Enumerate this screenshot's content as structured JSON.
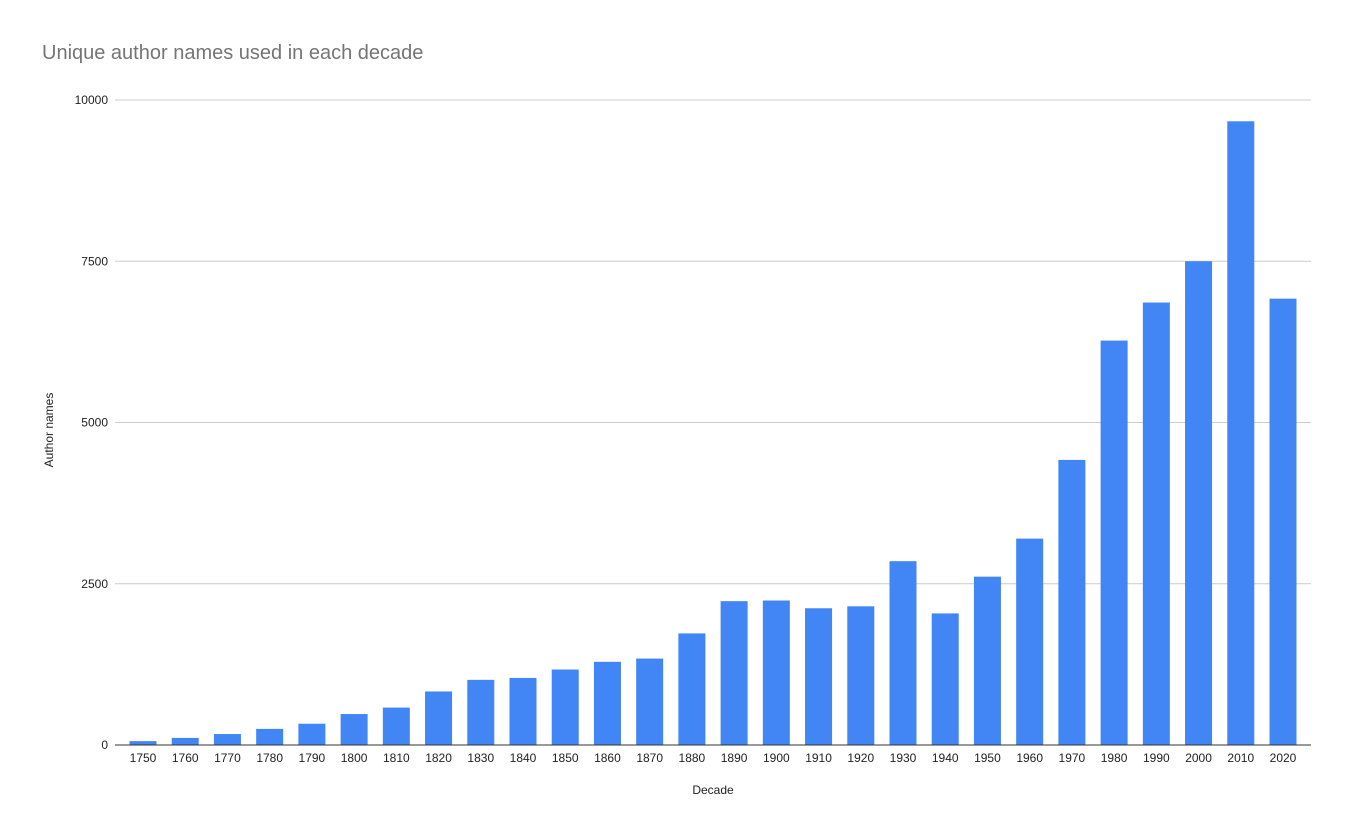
{
  "chart_data": {
    "type": "bar",
    "title": "Unique author names used in each decade",
    "xlabel": "Decade",
    "ylabel": "Author names",
    "ylim": [
      0,
      10000
    ],
    "yticks": [
      0,
      2500,
      5000,
      7500,
      10000
    ],
    "grid": true,
    "legend": "none",
    "color": "#4285f4",
    "categories": [
      "1750",
      "1760",
      "1770",
      "1780",
      "1790",
      "1800",
      "1810",
      "1820",
      "1830",
      "1840",
      "1850",
      "1860",
      "1870",
      "1880",
      "1890",
      "1900",
      "1910",
      "1920",
      "1930",
      "1940",
      "1950",
      "1960",
      "1970",
      "1980",
      "1990",
      "2000",
      "2010",
      "2020"
    ],
    "values": [
      60,
      110,
      170,
      250,
      330,
      480,
      580,
      830,
      1010,
      1040,
      1170,
      1290,
      1340,
      1730,
      2230,
      2240,
      2120,
      2150,
      2850,
      2040,
      2610,
      3200,
      4420,
      6270,
      6860,
      7500,
      9670,
      6920
    ]
  }
}
